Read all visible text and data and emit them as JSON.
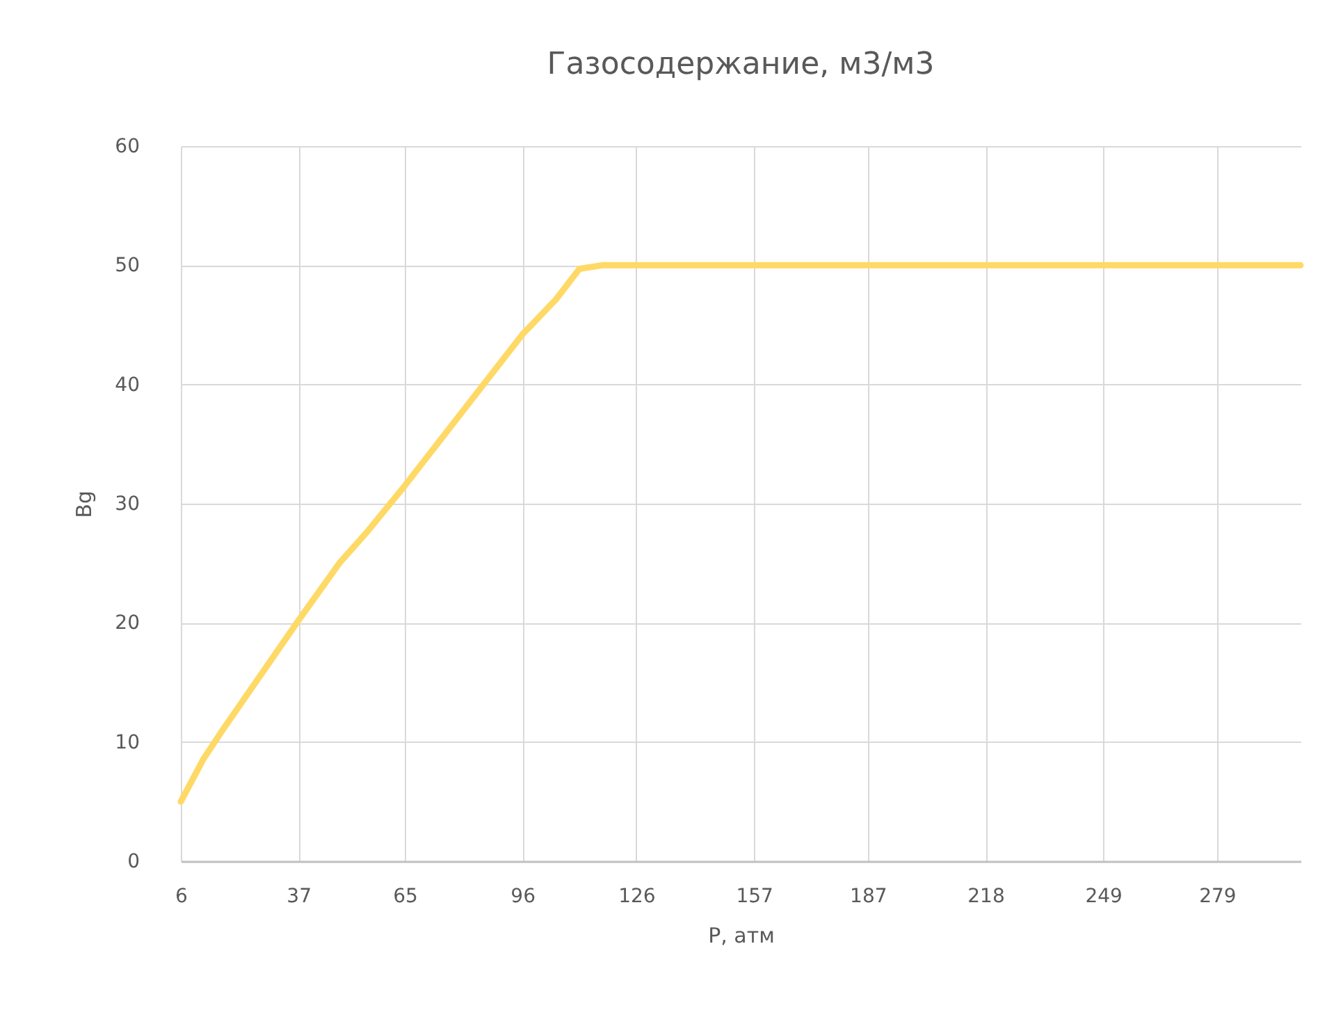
{
  "chart_data": {
    "type": "line",
    "title": "Газосодержание, м3/м3",
    "xlabel": "P, атм",
    "ylabel": "Bg",
    "series": [
      {
        "color": "#ffd966",
        "x": [
          6,
          12,
          17,
          37,
          48,
          55,
          65,
          96,
          105,
          111,
          117,
          150,
          200,
          250,
          301
        ],
        "values": [
          5,
          8.6,
          11,
          20.2,
          25.1,
          27.6,
          31.5,
          44.2,
          47.2,
          49.7,
          50,
          50,
          50,
          50,
          50
        ]
      }
    ],
    "xlim": [
      6,
      301
    ],
    "xticks": [
      6,
      37,
      65,
      96,
      126,
      157,
      187,
      218,
      249,
      279
    ],
    "ylim": [
      0,
      60
    ],
    "yticks": [
      0,
      10,
      20,
      30,
      40,
      50,
      60
    ],
    "grid": true,
    "legend": false,
    "marker": "none",
    "line_style": "solid"
  }
}
